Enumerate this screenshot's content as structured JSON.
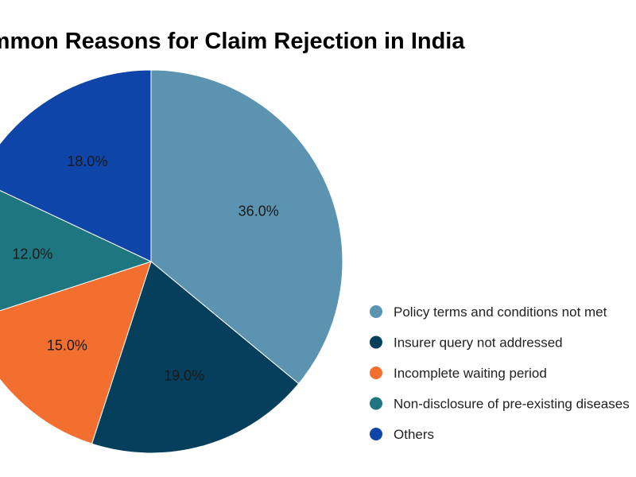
{
  "chart_data": {
    "type": "pie",
    "title": "Common Reasons for Claim Rejection in India",
    "slices": [
      {
        "label": "Policy terms and conditions not met",
        "value": 36.0,
        "display": "36.0%",
        "color": "#5b93b0"
      },
      {
        "label": "Insurer query not addressed",
        "value": 19.0,
        "display": "19.0%",
        "color": "#063f5c"
      },
      {
        "label": "Incomplete waiting period",
        "value": 15.0,
        "display": "15.0%",
        "color": "#f26f30"
      },
      {
        "label": "Non-disclosure of pre-existing diseases",
        "value": 12.0,
        "display": "12.0%",
        "color": "#1e7680"
      },
      {
        "label": "Others",
        "value": 18.0,
        "display": "18.0%",
        "color": "#0f44a8"
      }
    ],
    "start_angle": "12 o'clock",
    "direction": "clockwise",
    "legend_position": "right"
  }
}
